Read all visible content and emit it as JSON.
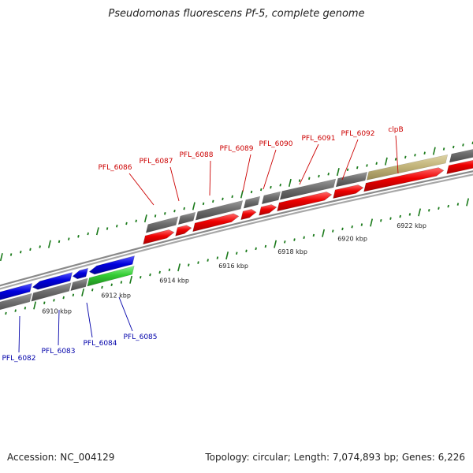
{
  "header": {
    "title": "Pseudomonas fluorescens Pf-5, complete genome"
  },
  "footer": {
    "accession": "Accession: NC_004129",
    "summary": "Topology: circular; Length: 7,074,893 bp; Genes: 6,226"
  },
  "colors": {
    "forward_cds": "#ee0000",
    "reverse_cds": "#0000dd",
    "rna": "#33cc33",
    "gene_track": "#6e6e6e",
    "highlight_gene": "#c2b47a",
    "tick": "#1a7a1a",
    "label_forward": "#cc0000",
    "label_reverse": "#0000aa",
    "backbone": "#8a8a8a"
  },
  "ticks": [
    {
      "label": "6910 kbp"
    },
    {
      "label": "6912 kbp"
    },
    {
      "label": "6914 kbp"
    },
    {
      "label": "6916 kbp"
    },
    {
      "label": "6918 kbp"
    },
    {
      "label": "6920 kbp"
    },
    {
      "label": "6922 kbp"
    }
  ],
  "genes_forward": [
    {
      "name": "PFL_6086"
    },
    {
      "name": "PFL_6087"
    },
    {
      "name": "PFL_6088"
    },
    {
      "name": "PFL_6089"
    },
    {
      "name": "PFL_6090"
    },
    {
      "name": "PFL_6091"
    },
    {
      "name": "PFL_6092"
    },
    {
      "name": "clpB"
    }
  ],
  "genes_reverse": [
    {
      "name": "PFL_6082"
    },
    {
      "name": "PFL_6083"
    },
    {
      "name": "PFL_6084"
    },
    {
      "name": "PFL_6085"
    }
  ]
}
